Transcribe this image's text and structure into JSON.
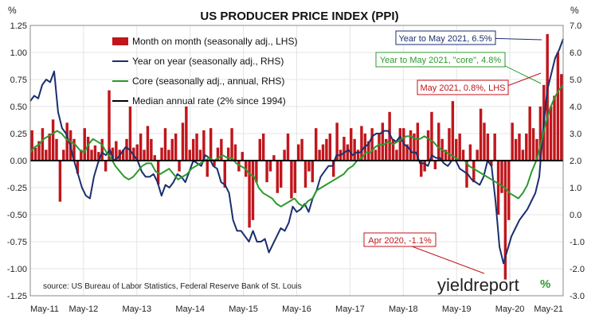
{
  "chart_data": {
    "type": "bar",
    "title": "US PRODUCER PRICE INDEX (PPI)",
    "left_axis_unit": "%",
    "right_axis_unit": "%",
    "ylim_left": [
      -1.25,
      1.25
    ],
    "ylim_right": [
      -3.0,
      7.0
    ],
    "yticks_left": [
      "1.25",
      "1.00",
      "0.75",
      "0.50",
      "0.25",
      "0.00",
      "-0.25",
      "-0.50",
      "-0.75",
      "-1.00",
      "-1.25"
    ],
    "yticks_right": [
      "7.0",
      "6.0",
      "5.0",
      "4.0",
      "3.0",
      "2.0",
      "1.0",
      "0.0",
      "-1.0",
      "-2.0",
      "-3.0"
    ],
    "x_ticks": [
      "May-11",
      "May-12",
      "May-13",
      "May-14",
      "May-15",
      "May-16",
      "May-17",
      "May-18",
      "May-19",
      "May-20",
      "May-21"
    ],
    "grid": true,
    "legend_position": "top-left",
    "legend": [
      {
        "label": "Month on month (seasonally adj., LHS)",
        "color": "#c0161c",
        "kind": "bar"
      },
      {
        "label": "Year on year (seasonally adj., RHS)",
        "color": "#1a2f6e",
        "kind": "line"
      },
      {
        "label": "Core (seasonally adj., annual, RHS)",
        "color": "#2c9a2c",
        "kind": "line"
      },
      {
        "label": "Median annual rate (2% since 1994)",
        "color": "#000000",
        "kind": "line"
      }
    ],
    "series": [
      {
        "name": "Month on month (seasonally adj., LHS)",
        "axis": "left",
        "color": "#c0161c",
        "values": [
          0.28,
          0.12,
          0.18,
          0.3,
          0.1,
          0.25,
          0.38,
          0.2,
          -0.38,
          0.1,
          0.35,
          0.28,
          0.2,
          -0.12,
          0.1,
          0.3,
          0.22,
          0.1,
          0.14,
          0.08,
          0.2,
          -0.1,
          0.65,
          0.12,
          0.18,
          0.1,
          0.1,
          0.2,
          0.5,
          0.12,
          0.15,
          0.25,
          0.1,
          0.32,
          0.2,
          0.05,
          -0.22,
          0.12,
          0.3,
          0.1,
          0.2,
          0.25,
          -0.1,
          0.35,
          0.5,
          0.1,
          0.2,
          0.25,
          0.1,
          0.28,
          -0.15,
          0.3,
          -0.05,
          0.12,
          0.2,
          -0.25,
          0.12,
          0.3,
          0.15,
          -0.1,
          0.08,
          -0.15,
          -0.62,
          -0.55,
          -0.2,
          0.2,
          0.25,
          -0.2,
          -0.1,
          0.05,
          -0.3,
          -0.25,
          0.1,
          0.25,
          -0.35,
          -0.3,
          0.15,
          0.2,
          -0.25,
          -0.1,
          -0.2,
          0.3,
          0.1,
          0.15,
          0.2,
          0.25,
          -0.15,
          0.35,
          0.1,
          0.22,
          0.15,
          0.3,
          0.2,
          0.1,
          0.32,
          0.25,
          0.18,
          0.3,
          0.1,
          0.25,
          0.35,
          0.2,
          0.45,
          0.2,
          0.1,
          0.3,
          0.3,
          0.15,
          0.28,
          0.25,
          0.35,
          -0.15,
          -0.1,
          0.28,
          0.45,
          -0.08,
          0.35,
          0.2,
          0.1,
          0.3,
          0.55,
          0.2,
          0.25,
          0.1,
          -0.25,
          0.15,
          -0.2,
          0.1,
          0.48,
          0.35,
          0.25,
          -0.05,
          0.25,
          -0.5,
          -0.3,
          -1.1,
          -0.55,
          0.35,
          0.2,
          0.25,
          0.1,
          0.25,
          0.5,
          0.3,
          0.2,
          0.5,
          0.7,
          1.17,
          0.5,
          0.6,
          1.0,
          0.8
        ],
        "annotation": {
          "label": "May 2021, 0.8%, LHS",
          "value": 0.8
        },
        "annotation_min": {
          "label": "Apr 2020, -1.1%",
          "value": -1.1
        }
      },
      {
        "name": "Year on year (seasonally adj., RHS)",
        "axis": "right",
        "color": "#1a2f6e",
        "values": [
          4.2,
          4.4,
          4.3,
          4.8,
          5.0,
          4.9,
          5.3,
          3.8,
          3.2,
          3.0,
          2.6,
          2.0,
          1.5,
          1.0,
          0.7,
          0.6,
          1.4,
          1.9,
          2.3,
          2.2,
          2.4,
          2.0,
          2.1,
          2.3,
          2.5,
          2.4,
          2.2,
          2.0,
          1.6,
          1.4,
          1.4,
          1.5,
          1.2,
          0.7,
          1.1,
          1.0,
          1.2,
          1.5,
          1.4,
          1.2,
          1.6,
          2.0,
          1.9,
          1.8,
          2.2,
          2.1,
          1.8,
          1.7,
          1.2,
          1.1,
          0.8,
          -0.2,
          -0.6,
          -0.6,
          -0.8,
          -1.0,
          -0.6,
          -1.0,
          -1.0,
          -0.9,
          -1.4,
          -1.1,
          -0.8,
          -0.5,
          -0.6,
          -0.3,
          0.3,
          0.1,
          0.2,
          0.4,
          0.1,
          0.6,
          0.9,
          1.4,
          1.6,
          1.8,
          1.8,
          2.2,
          2.2,
          2.3,
          2.4,
          2.2,
          2.3,
          2.3,
          2.5,
          2.6,
          2.9,
          3.0,
          3.0,
          3.1,
          3.1,
          2.8,
          2.7,
          2.9,
          2.6,
          2.5,
          2.3,
          2.3,
          1.9,
          1.9,
          1.8,
          2.2,
          2.1,
          2.1,
          1.9,
          1.8,
          2.0,
          2.0,
          1.7,
          1.6,
          1.5,
          1.3,
          1.2,
          1.1,
          1.4,
          2.0,
          1.8,
          0.5,
          -1.2,
          -1.8,
          -1.3,
          -0.8,
          -0.5,
          -0.2,
          0.0,
          0.2,
          0.5,
          0.8,
          1.4,
          3.2,
          4.6,
          5.2,
          5.8,
          6.1,
          6.5
        ],
        "annotation": {
          "label": "Year to May 2021, 6.5%",
          "value": 6.5
        }
      },
      {
        "name": "Core (seasonally adj., annual, RHS)",
        "axis": "right",
        "color": "#2c9a2c",
        "values": [
          2.3,
          2.5,
          2.6,
          2.8,
          2.9,
          3.0,
          3.1,
          3.0,
          2.8,
          2.7,
          2.6,
          2.4,
          2.3,
          2.6,
          2.8,
          2.7,
          2.6,
          2.3,
          2.1,
          1.8,
          1.6,
          1.4,
          1.3,
          1.4,
          1.6,
          1.8,
          1.9,
          1.9,
          1.6,
          1.5,
          1.6,
          1.7,
          1.5,
          1.3,
          1.4,
          1.5,
          1.7,
          1.8,
          1.9,
          2.0,
          2.1,
          2.0,
          2.1,
          2.2,
          2.1,
          2.1,
          1.9,
          1.8,
          1.7,
          1.5,
          1.4,
          1.0,
          0.8,
          0.7,
          0.6,
          0.4,
          0.3,
          0.4,
          0.5,
          0.6,
          0.4,
          0.3,
          0.5,
          0.6,
          0.9,
          1.0,
          1.1,
          1.2,
          1.3,
          1.4,
          1.5,
          1.7,
          1.8,
          2.0,
          2.1,
          2.3,
          2.3,
          2.5,
          2.6,
          2.6,
          2.7,
          2.6,
          2.7,
          2.8,
          2.9,
          2.9,
          2.8,
          2.8,
          2.9,
          2.8,
          2.7,
          2.5,
          2.4,
          2.3,
          2.2,
          2.1,
          2.0,
          2.0,
          1.8,
          1.7,
          1.6,
          1.5,
          1.4,
          1.3,
          1.2,
          1.1,
          1.0,
          0.8,
          0.7,
          0.6,
          0.8,
          1.1,
          1.6,
          2.0,
          2.6,
          3.3,
          3.9,
          4.3,
          4.6,
          4.8
        ],
        "annotation": {
          "label": "Year to May 2021, \"core\", 4.8%",
          "value": 4.8
        }
      },
      {
        "name": "Median annual rate (2% since 1994)",
        "axis": "right",
        "color": "#000000",
        "values": [
          2.0,
          2.0
        ]
      }
    ],
    "source": "source: US Bureau of Labor Statistics, Federal Reserve Bank of St. Louis",
    "logo": {
      "text": "yieldreport",
      "mark": "%"
    }
  }
}
